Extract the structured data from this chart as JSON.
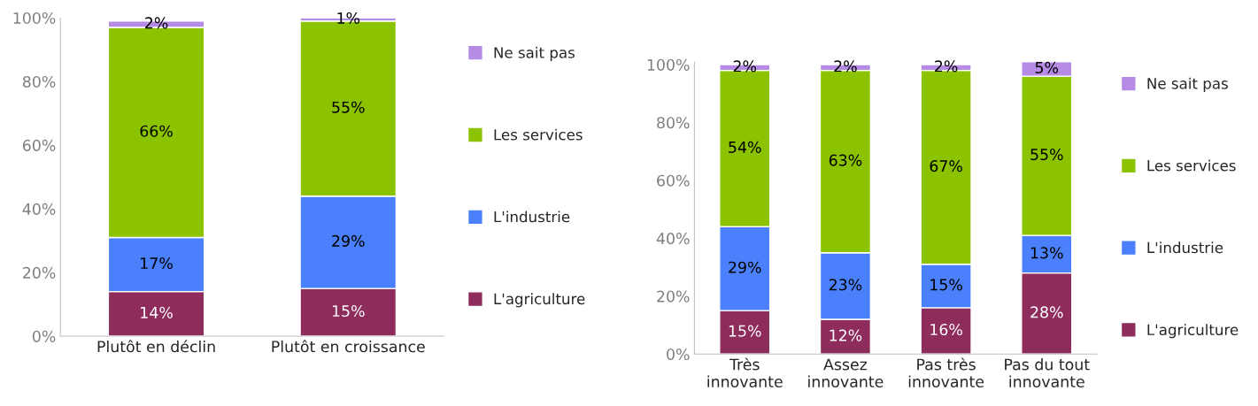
{
  "chart_data": [
    {
      "type": "bar",
      "stacked": true,
      "categories": [
        "Plutôt en déclin",
        "Plutôt en croissance"
      ],
      "ylim": [
        0,
        100
      ],
      "yticks": [
        {
          "value": 0,
          "label": "0%"
        },
        {
          "value": 20,
          "label": "20%"
        },
        {
          "value": 40,
          "label": "40%"
        },
        {
          "value": 60,
          "label": "60%"
        },
        {
          "value": 80,
          "label": "80%"
        },
        {
          "value": 100,
          "label": "100%"
        }
      ],
      "series": [
        {
          "name": "L'agriculture",
          "color": "#8e2c5c",
          "values": [
            14,
            15
          ],
          "value_labels": [
            "14%",
            "15%"
          ]
        },
        {
          "name": "L'industrie",
          "color": "#4a80fb",
          "values": [
            17,
            29
          ],
          "value_labels": [
            "17%",
            "29%"
          ]
        },
        {
          "name": "Les services",
          "color": "#8cc300",
          "values": [
            66,
            55
          ],
          "value_labels": [
            "66%",
            "55%"
          ]
        },
        {
          "name": "Ne sait pas",
          "color": "#b58be6",
          "values": [
            2,
            1
          ],
          "value_labels": [
            "2%",
            "1%"
          ]
        }
      ],
      "legend": "right",
      "grid": false
    },
    {
      "type": "bar",
      "stacked": true,
      "categories": [
        "Très\ninnovante",
        "Assez\ninnovante",
        "Pas très\ninnovante",
        "Pas du tout\ninnovante"
      ],
      "ylim": [
        0,
        101
      ],
      "yticks": [
        {
          "value": 0,
          "label": "0%"
        },
        {
          "value": 20,
          "label": "20%"
        },
        {
          "value": 40,
          "label": "40%"
        },
        {
          "value": 60,
          "label": "60%"
        },
        {
          "value": 80,
          "label": "80%"
        },
        {
          "value": 100,
          "label": "100%"
        }
      ],
      "series": [
        {
          "name": "L'agriculture",
          "color": "#8e2c5c",
          "values": [
            15,
            12,
            16,
            28
          ],
          "value_labels": [
            "15%",
            "12%",
            "16%",
            "28%"
          ]
        },
        {
          "name": "L'industrie",
          "color": "#4a80fb",
          "values": [
            29,
            23,
            15,
            13
          ],
          "value_labels": [
            "29%",
            "23%",
            "15%",
            "13%"
          ]
        },
        {
          "name": "Les services",
          "color": "#8cc300",
          "values": [
            54,
            63,
            67,
            55
          ],
          "value_labels": [
            "54%",
            "63%",
            "67%",
            "55%"
          ]
        },
        {
          "name": "Ne sait pas",
          "color": "#b58be6",
          "values": [
            2,
            2,
            2,
            5
          ],
          "value_labels": [
            "2%",
            "2%",
            "2%",
            "5%"
          ]
        }
      ],
      "legend": "right",
      "grid": false
    }
  ]
}
